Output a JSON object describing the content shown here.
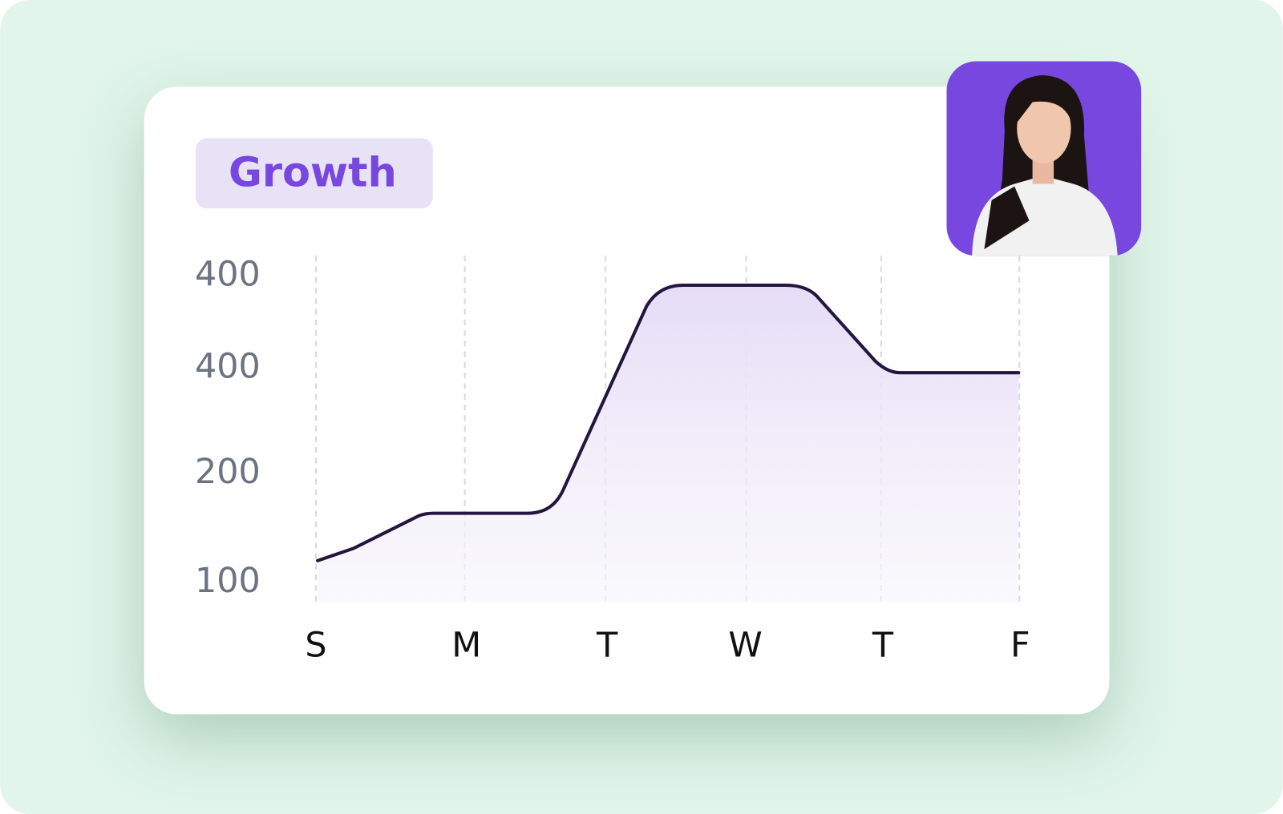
{
  "badge": "Growth",
  "y_axis_labels": [
    "400",
    "400",
    "200",
    "100"
  ],
  "x_axis_labels": [
    "S",
    "M",
    "T",
    "W",
    "T",
    "F"
  ]
}
